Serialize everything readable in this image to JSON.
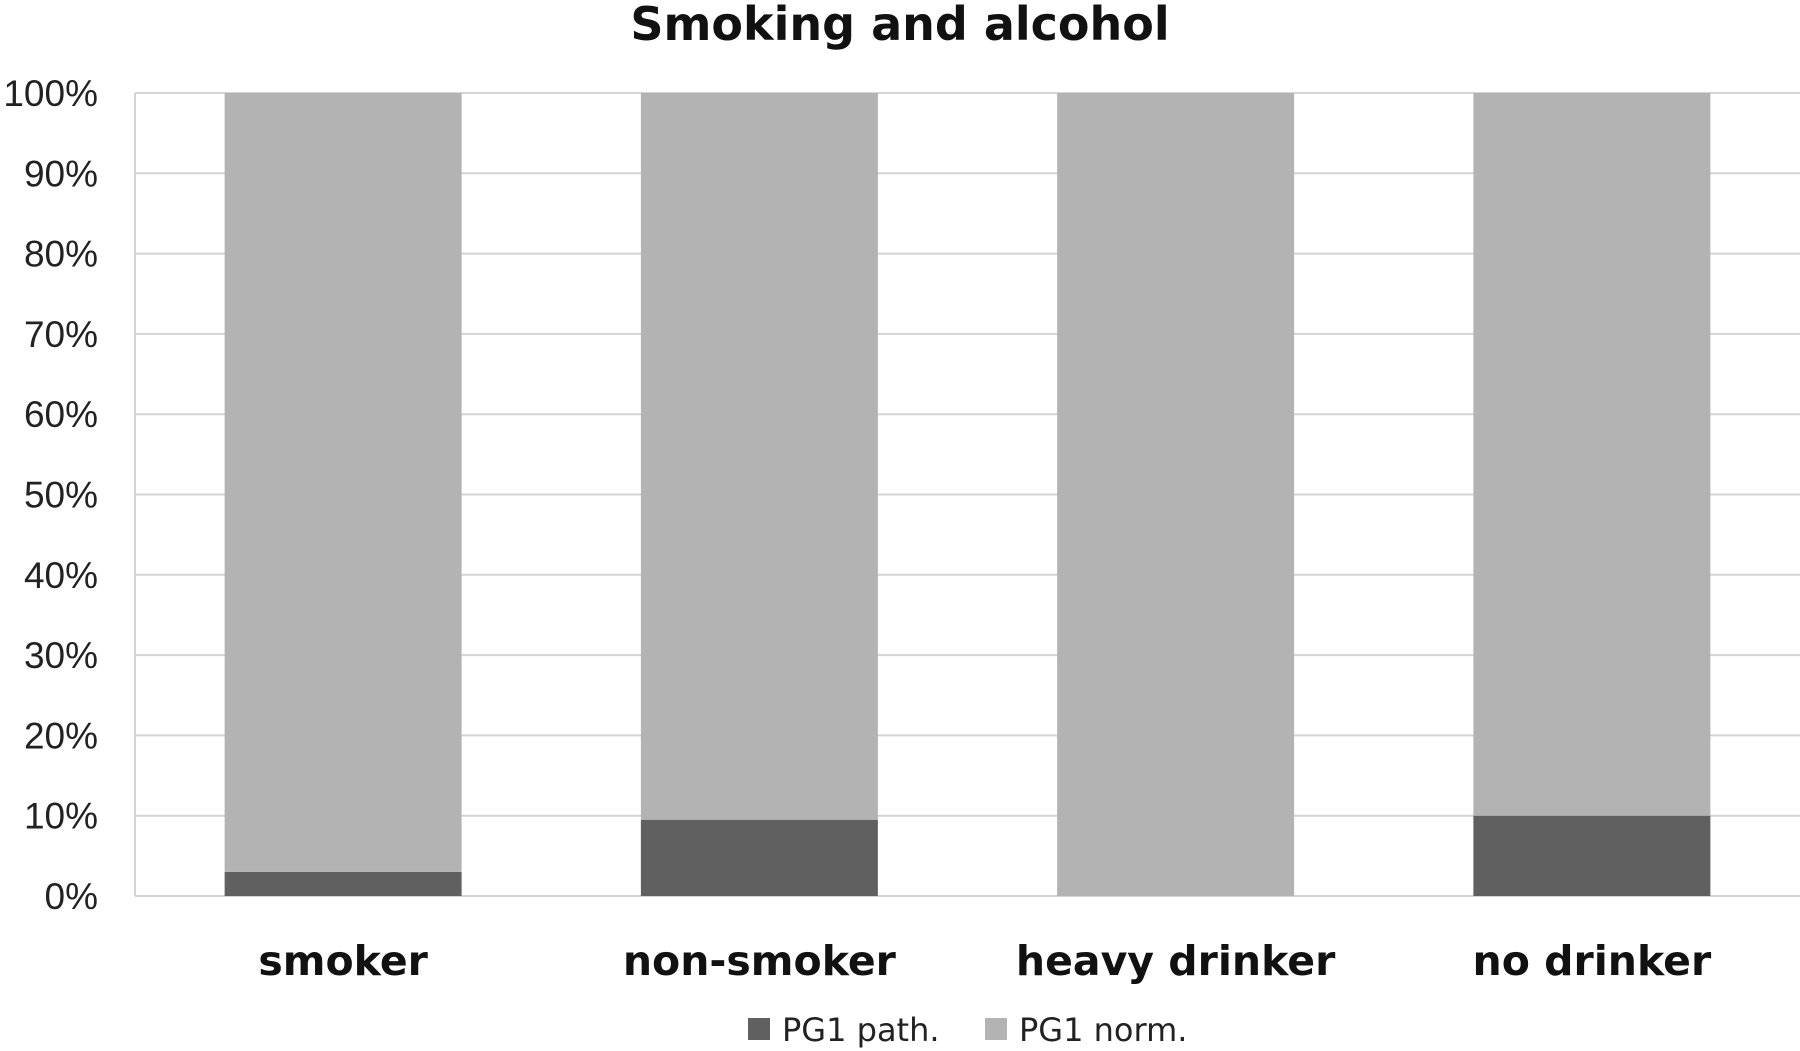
{
  "chart_data": {
    "type": "bar",
    "stacked": true,
    "percent": true,
    "title": "Smoking and alcohol",
    "xlabel": "",
    "ylabel": "",
    "categories": [
      "smoker",
      "non-smoker",
      "heavy drinker",
      "no drinker"
    ],
    "series": [
      {
        "name": "PG1 path.",
        "color": "#606060",
        "values": [
          3,
          9.5,
          0,
          10
        ]
      },
      {
        "name": "PG1 norm.",
        "color": "#b3b3b3",
        "values": [
          97,
          90.5,
          100,
          90
        ]
      }
    ],
    "ylim": [
      0,
      100
    ],
    "yticks": [
      "0%",
      "10%",
      "20%",
      "30%",
      "40%",
      "50%",
      "60%",
      "70%",
      "80%",
      "90%",
      "100%"
    ],
    "grid": true,
    "legend_position": "bottom"
  }
}
